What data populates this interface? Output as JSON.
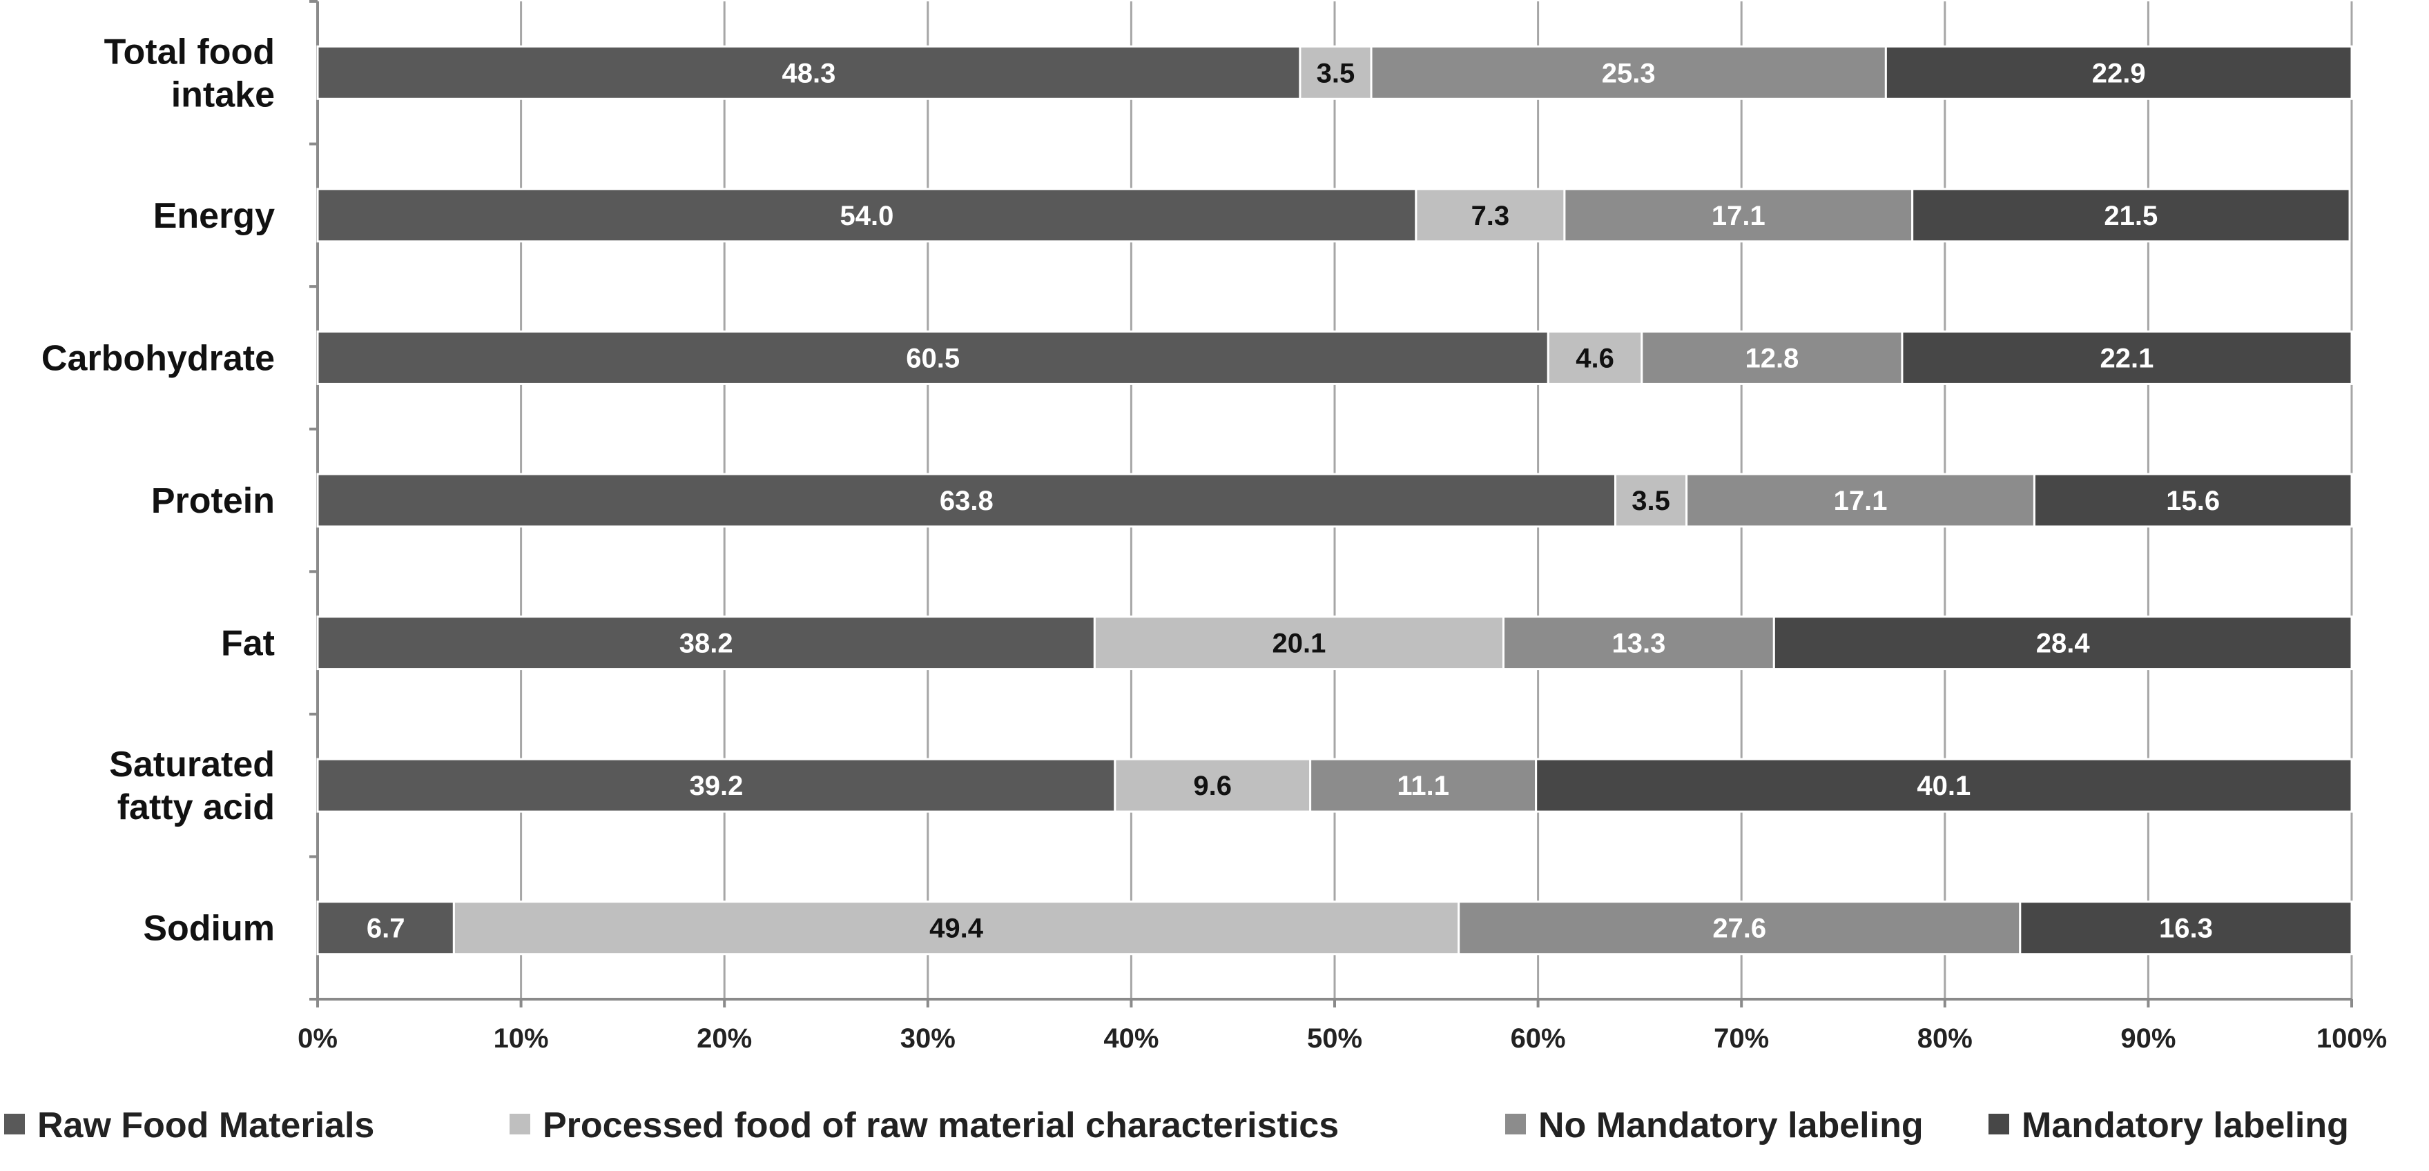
{
  "chart_data": {
    "type": "bar",
    "orientation": "horizontal",
    "stacked": "percent",
    "categories": [
      [
        "Total food",
        "intake"
      ],
      [
        "Energy"
      ],
      [
        "Carbohydrate"
      ],
      [
        "Protein"
      ],
      [
        "Fat"
      ],
      [
        "Saturated",
        "fatty acid"
      ],
      [
        "Sodium"
      ]
    ],
    "series": [
      {
        "name": "Raw Food Materials",
        "color": "#595959",
        "label_color": "#ffffff",
        "values": [
          48.3,
          54.0,
          60.5,
          63.8,
          38.2,
          39.2,
          6.7
        ],
        "labels": [
          "48.3",
          "54.0",
          "60.5",
          "63.8",
          "38.2",
          "39.2",
          "6.7"
        ]
      },
      {
        "name": "Processed food of raw material characteristics",
        "color": "#bfbfbf",
        "label_color": "#111111",
        "values": [
          3.5,
          7.3,
          4.6,
          3.5,
          20.1,
          9.6,
          49.4
        ],
        "labels": [
          "3.5",
          "7.3",
          "4.6",
          "3.5",
          "20.1",
          "9.6",
          "49.4"
        ]
      },
      {
        "name": "No Mandatory labeling",
        "color": "#8c8c8c",
        "label_color": "#ffffff",
        "values": [
          25.3,
          17.1,
          12.8,
          17.1,
          13.3,
          11.1,
          27.6
        ],
        "labels": [
          "25.3",
          "17.1",
          "12.8",
          "17.1",
          "13.3",
          "11.1",
          "27.6"
        ]
      },
      {
        "name": "Mandatory labeling",
        "color": "#474747",
        "label_color": "#ffffff",
        "values": [
          22.9,
          21.5,
          22.1,
          15.6,
          28.4,
          40.1,
          16.3
        ],
        "labels": [
          "22.9",
          "21.5",
          "22.1",
          "15.6",
          "28.4",
          "40.1",
          "16.3"
        ]
      }
    ],
    "xlim": [
      0,
      100
    ],
    "x_ticks": [
      "0%",
      "10%",
      "20%",
      "30%",
      "40%",
      "50%",
      "60%",
      "70%",
      "80%",
      "90%",
      "100%"
    ],
    "grid": true,
    "legend": "bottom",
    "title": "",
    "xlabel": "",
    "ylabel": ""
  }
}
